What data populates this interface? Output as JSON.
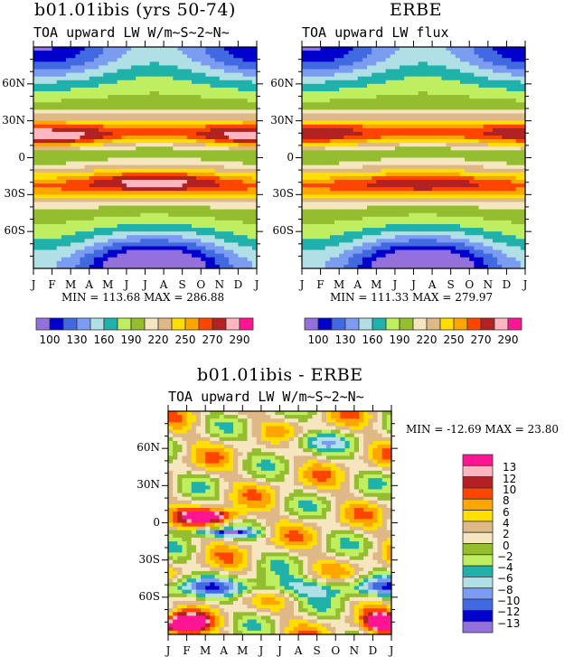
{
  "chart_data": [
    {
      "type": "heatmap",
      "title": "b01.01ibis (yrs 50-74)",
      "subtitle": "TOA upward LW W/m~S~2~N~",
      "field": "model",
      "x_ticks": [
        "J",
        "F",
        "M",
        "A",
        "M",
        "J",
        "J",
        "A",
        "S",
        "O",
        "N",
        "D",
        "J"
      ],
      "y_ticks": [
        "60N",
        "30N",
        "0",
        "30S",
        "60S"
      ],
      "y_tick_values": [
        60,
        30,
        0,
        -30,
        -60
      ],
      "ylim": [
        -90,
        90
      ],
      "min_max_text": "MIN = 113.68 MAX = 286.88",
      "min": 113.68,
      "max": 286.88,
      "colorbar_labels": [
        "100",
        "130",
        "160",
        "190",
        "220",
        "250",
        "270",
        "290"
      ],
      "levels": [
        100,
        115,
        130,
        145,
        160,
        175,
        190,
        205,
        220,
        235,
        250,
        260,
        270,
        280,
        290
      ]
    },
    {
      "type": "heatmap",
      "title": "ERBE",
      "subtitle": "TOA upward LW flux",
      "field": "obs",
      "x_ticks": [
        "J",
        "F",
        "M",
        "A",
        "M",
        "J",
        "J",
        "A",
        "S",
        "O",
        "N",
        "D",
        "J"
      ],
      "y_ticks": [
        "60N",
        "30N",
        "0",
        "30S",
        "60S"
      ],
      "y_tick_values": [
        60,
        30,
        0,
        -30,
        -60
      ],
      "ylim": [
        -90,
        90
      ],
      "min_max_text": "MIN = 111.33 MAX = 279.97",
      "min": 111.33,
      "max": 279.97,
      "colorbar_labels": [
        "100",
        "130",
        "160",
        "190",
        "220",
        "250",
        "270",
        "290"
      ],
      "levels": [
        100,
        115,
        130,
        145,
        160,
        175,
        190,
        205,
        220,
        235,
        250,
        260,
        270,
        280,
        290
      ]
    },
    {
      "type": "heatmap",
      "title": "b01.01ibis - ERBE",
      "subtitle": "TOA upward LW W/m~S~2~N~",
      "field": "diff",
      "x_ticks": [
        "J",
        "F",
        "M",
        "A",
        "M",
        "J",
        "J",
        "A",
        "S",
        "O",
        "N",
        "D",
        "J"
      ],
      "y_ticks": [
        "60N",
        "30N",
        "0",
        "30S",
        "60S"
      ],
      "y_tick_values": [
        60,
        30,
        0,
        -30,
        -60
      ],
      "ylim": [
        -90,
        90
      ],
      "min_max_text": "MIN = -12.69 MAX =  23.80",
      "min": -12.69,
      "max": 23.8,
      "colorbar_labels": [
        "13",
        "12",
        "10",
        "8",
        "6",
        "4",
        "2",
        "0",
        "-2",
        "-4",
        "-6",
        "-8",
        "-10",
        "-12",
        "-13"
      ],
      "levels": [
        -13,
        -12,
        -10,
        -8,
        -6,
        -4,
        -2,
        0,
        2,
        4,
        6,
        8,
        10,
        12,
        13
      ]
    }
  ],
  "palette": [
    "#9370db",
    "#0000cd",
    "#4169e1",
    "#7b9cf0",
    "#b0e0e6",
    "#20b2aa",
    "#bfef60",
    "#95bd30",
    "#f5e6c0",
    "#deb887",
    "#ffde00",
    "#ffa500",
    "#ff4500",
    "#b22222",
    "#ffb6c1",
    "#ff1493"
  ]
}
